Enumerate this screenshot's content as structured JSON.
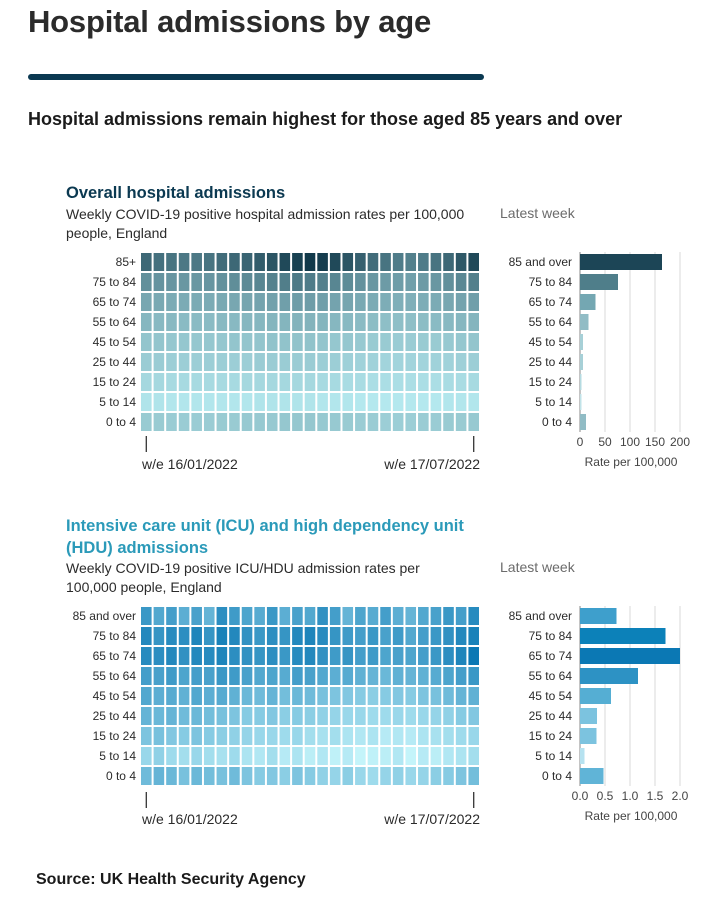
{
  "page": {
    "title": "Hospital admissions by age",
    "lede": "Hospital admissions remain highest for those aged 85 years and over",
    "source": "Source: UK Health Security Agency"
  },
  "colors": {
    "title_rule": "#0b3951",
    "admissions_title": "#0b3951",
    "icu_title": "#2b9ab9",
    "admissions_ramp": [
      "#b4e8ee",
      "#11394a"
    ],
    "icu_ramp": [
      "#c4f4fa",
      "#0b78b4"
    ]
  },
  "chart_data": [
    {
      "type": "heatmap",
      "title": "Overall hospital admissions",
      "subtitle": "Weekly COVID-19 positive hospital admission rates per 100,000 people, England",
      "rows": [
        "85+",
        "75 to 84",
        "65 to 74",
        "55 to 64",
        "45 to 54",
        "25 to 44",
        "15 to 24",
        "5 to 14",
        "0 to 4"
      ],
      "x_tick_labels": [
        "w/e 16/01/2022",
        "w/e 17/07/2022"
      ],
      "weeks": 27,
      "values": [
        [
          72,
          68,
          66,
          64,
          64,
          66,
          70,
          72,
          74,
          78,
          82,
          88,
          92,
          96,
          94,
          88,
          82,
          76,
          70,
          66,
          62,
          60,
          62,
          66,
          72,
          80,
          88
        ],
        [
          52,
          50,
          49,
          48,
          48,
          49,
          51,
          53,
          55,
          57,
          59,
          61,
          63,
          62,
          60,
          57,
          54,
          51,
          48,
          46,
          45,
          44,
          46,
          48,
          52,
          56,
          60
        ],
        [
          40,
          39,
          38,
          38,
          38,
          38,
          39,
          40,
          41,
          42,
          43,
          44,
          45,
          45,
          44,
          42,
          41,
          39,
          38,
          37,
          36,
          36,
          37,
          38,
          40,
          42,
          44
        ],
        [
          32,
          31,
          31,
          30,
          30,
          30,
          31,
          31,
          32,
          32,
          33,
          33,
          34,
          34,
          33,
          32,
          31,
          30,
          29,
          28,
          28,
          28,
          29,
          30,
          31,
          32,
          33
        ],
        [
          25,
          25,
          24,
          24,
          24,
          24,
          24,
          25,
          25,
          25,
          26,
          26,
          26,
          26,
          25,
          24,
          24,
          23,
          22,
          22,
          21,
          21,
          22,
          22,
          23,
          24,
          25
        ],
        [
          21,
          21,
          20,
          20,
          20,
          20,
          20,
          20,
          20,
          21,
          21,
          21,
          21,
          21,
          20,
          20,
          19,
          18,
          18,
          17,
          17,
          17,
          17,
          18,
          18,
          19,
          20
        ],
        [
          15,
          15,
          14,
          14,
          14,
          14,
          14,
          14,
          15,
          15,
          15,
          15,
          15,
          15,
          14,
          14,
          13,
          13,
          12,
          12,
          12,
          12,
          12,
          12,
          13,
          13,
          14
        ],
        [
          9,
          9,
          8,
          8,
          8,
          8,
          8,
          8,
          8,
          9,
          9,
          9,
          9,
          9,
          8,
          8,
          8,
          7,
          7,
          7,
          7,
          7,
          7,
          7,
          8,
          8,
          8
        ],
        [
          22,
          22,
          21,
          21,
          21,
          21,
          22,
          22,
          23,
          23,
          23,
          24,
          24,
          24,
          23,
          23,
          22,
          21,
          21,
          20,
          20,
          20,
          21,
          21,
          22,
          22,
          23
        ]
      ],
      "latest_week": {
        "title": "Latest week",
        "type": "bar",
        "orientation": "horizontal",
        "categories": [
          "85 and over",
          "75 to 84",
          "65 to 74",
          "55 to 64",
          "45 to 54",
          "25 to 44",
          "15 to 24",
          "5 to 14",
          "0 to 4"
        ],
        "values": [
          164,
          76,
          31,
          17,
          6,
          6,
          3,
          1,
          12
        ],
        "xlim": [
          0,
          200
        ],
        "x_ticks": [
          0,
          50,
          100,
          150,
          200
        ],
        "xlabel": "Rate per 100,000",
        "colors": [
          "#1c4556",
          "#4f7e8a",
          "#74a7b2",
          "#91bcc5",
          "#a7d0d7",
          "#a7d0d7",
          "#b5dbe1",
          "#c1e3e8",
          "#91bcc5"
        ]
      }
    },
    {
      "type": "heatmap",
      "title": "Intensive care unit (ICU) and high dependency unit (HDU) admissions",
      "subtitle": "Weekly COVID-19 positive ICU/HDU admission rates per 100,000 people, England",
      "rows": [
        "85 and over",
        "75 to 84",
        "65 to 74",
        "55 to 64",
        "45 to 54",
        "25 to 44",
        "15 to 24",
        "5 to 14",
        "0 to 4"
      ],
      "x_tick_labels": [
        "w/e 16/01/2022",
        "w/e 17/07/2022"
      ],
      "weeks": 27,
      "values": [
        [
          62,
          52,
          58,
          48,
          56,
          44,
          68,
          60,
          54,
          50,
          62,
          48,
          56,
          52,
          66,
          58,
          44,
          54,
          50,
          58,
          48,
          44,
          52,
          56,
          62,
          58,
          70
        ],
        [
          72,
          64,
          70,
          68,
          74,
          64,
          76,
          72,
          66,
          62,
          68,
          64,
          72,
          74,
          70,
          64,
          60,
          58,
          62,
          56,
          60,
          52,
          58,
          62,
          66,
          72,
          76
        ],
        [
          70,
          68,
          72,
          66,
          72,
          70,
          74,
          68,
          66,
          64,
          68,
          62,
          70,
          72,
          66,
          60,
          64,
          58,
          60,
          54,
          56,
          54,
          58,
          62,
          68,
          74,
          82
        ],
        [
          58,
          56,
          60,
          54,
          58,
          56,
          62,
          60,
          56,
          52,
          54,
          50,
          58,
          56,
          52,
          48,
          50,
          46,
          44,
          42,
          46,
          44,
          46,
          50,
          54,
          58,
          62
        ],
        [
          52,
          48,
          50,
          46,
          52,
          48,
          50,
          46,
          42,
          40,
          44,
          38,
          42,
          40,
          36,
          34,
          32,
          30,
          28,
          30,
          32,
          30,
          34,
          36,
          40,
          44,
          46
        ],
        [
          44,
          42,
          44,
          40,
          42,
          38,
          36,
          34,
          30,
          30,
          32,
          28,
          30,
          28,
          26,
          24,
          22,
          22,
          20,
          20,
          22,
          20,
          22,
          24,
          26,
          30,
          32
        ],
        [
          34,
          36,
          32,
          30,
          34,
          30,
          28,
          26,
          24,
          22,
          22,
          20,
          22,
          18,
          16,
          18,
          14,
          12,
          14,
          10,
          12,
          10,
          14,
          16,
          18,
          20,
          22
        ],
        [
          22,
          26,
          20,
          18,
          22,
          18,
          16,
          20,
          14,
          12,
          18,
          10,
          14,
          8,
          12,
          6,
          10,
          4,
          6,
          8,
          12,
          4,
          10,
          8,
          12,
          14,
          18
        ],
        [
          40,
          44,
          42,
          36,
          42,
          38,
          36,
          40,
          34,
          30,
          32,
          28,
          34,
          30,
          26,
          24,
          28,
          22,
          20,
          24,
          26,
          22,
          24,
          28,
          30,
          34,
          38
        ]
      ],
      "latest_week": {
        "title": "Latest week",
        "type": "bar",
        "orientation": "horizontal",
        "categories": [
          "85 and over",
          "75 to 84",
          "65 to 74",
          "55 to 64",
          "45 to 54",
          "25 to 44",
          "15 to 24",
          "5 to 14",
          "0 to 4"
        ],
        "values": [
          0.73,
          1.71,
          2.0,
          1.16,
          0.62,
          0.34,
          0.33,
          0.09,
          0.47
        ],
        "xlim": [
          0,
          2.0
        ],
        "x_ticks": [
          "0.0",
          "0.5",
          "1.0",
          "1.5",
          "2.0"
        ],
        "xlabel": "Rate per 100,000",
        "colors": [
          "#3e9fcc",
          "#0c81b9",
          "#0b78b4",
          "#2d92c4",
          "#55aed3",
          "#7cc3df",
          "#7cc3df",
          "#b6e2f0",
          "#60b4d7"
        ]
      }
    }
  ]
}
